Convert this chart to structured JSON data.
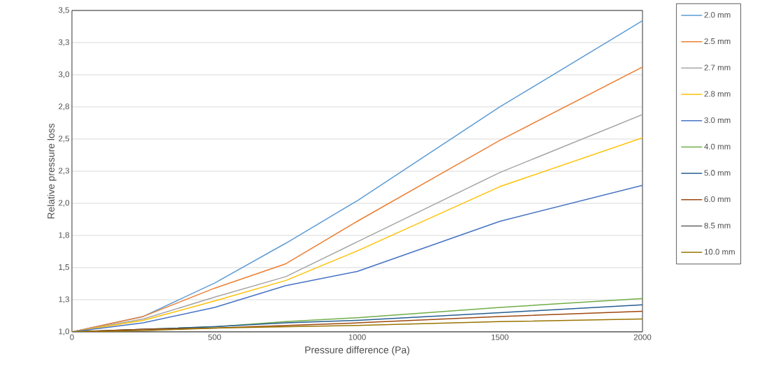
{
  "chart_data": {
    "type": "line",
    "xlabel": "Pressure difference (Pa)",
    "ylabel": "Relative pressure loss",
    "x": [
      0,
      250,
      500,
      750,
      1000,
      1500,
      2000
    ],
    "series": [
      {
        "name": "2.0 mm",
        "color": "#5b9bd5",
        "values": [
          1.0,
          1.12,
          1.38,
          1.69,
          2.02,
          2.75,
          3.42
        ]
      },
      {
        "name": "2.5 mm",
        "color": "#ed7d31",
        "values": [
          1.0,
          1.12,
          1.34,
          1.53,
          1.86,
          2.49,
          3.06
        ]
      },
      {
        "name": "2.7 mm",
        "color": "#a5a5a5",
        "values": [
          1.0,
          1.1,
          1.27,
          1.43,
          1.7,
          2.24,
          2.69
        ]
      },
      {
        "name": "2.8 mm",
        "color": "#ffc000",
        "values": [
          1.0,
          1.09,
          1.24,
          1.4,
          1.63,
          2.13,
          2.51
        ]
      },
      {
        "name": "3.0 mm",
        "color": "#4472c4",
        "values": [
          1.0,
          1.07,
          1.19,
          1.36,
          1.47,
          1.86,
          2.14
        ]
      },
      {
        "name": "4.0 mm",
        "color": "#70ad47",
        "values": [
          1.0,
          1.02,
          1.04,
          1.08,
          1.11,
          1.19,
          1.26
        ]
      },
      {
        "name": "5.0 mm",
        "color": "#255e91",
        "values": [
          1.0,
          1.02,
          1.04,
          1.07,
          1.09,
          1.15,
          1.21
        ]
      },
      {
        "name": "6.0 mm",
        "color": "#9e480e",
        "values": [
          1.0,
          1.02,
          1.03,
          1.05,
          1.07,
          1.12,
          1.16
        ]
      },
      {
        "name": "8.5 mm",
        "color": "#636363",
        "values": [
          1.0,
          1.0,
          1.0,
          1.0,
          1.0,
          1.0,
          1.0
        ]
      },
      {
        "name": "10.0 mm",
        "color": "#997300",
        "values": [
          1.0,
          1.01,
          1.03,
          1.04,
          1.05,
          1.08,
          1.1
        ]
      }
    ],
    "xlim": [
      0,
      2000
    ],
    "xticks": [
      0,
      500,
      1000,
      1500,
      2000
    ],
    "ylim": [
      1.0,
      3.5
    ],
    "yticks": [
      {
        "value": 1.0,
        "label": "1,0"
      },
      {
        "value": 1.25,
        "label": "1,3"
      },
      {
        "value": 1.5,
        "label": "1,5"
      },
      {
        "value": 1.75,
        "label": "1,8"
      },
      {
        "value": 2.0,
        "label": "2,0"
      },
      {
        "value": 2.25,
        "label": "2,3"
      },
      {
        "value": 2.5,
        "label": "2,5"
      },
      {
        "value": 2.75,
        "label": "2,8"
      },
      {
        "value": 3.0,
        "label": "3,0"
      },
      {
        "value": 3.25,
        "label": "3,3"
      },
      {
        "value": 3.5,
        "label": "3,5"
      }
    ],
    "grid": "y",
    "legend": "right",
    "marker": "none",
    "line_style": "solid"
  }
}
